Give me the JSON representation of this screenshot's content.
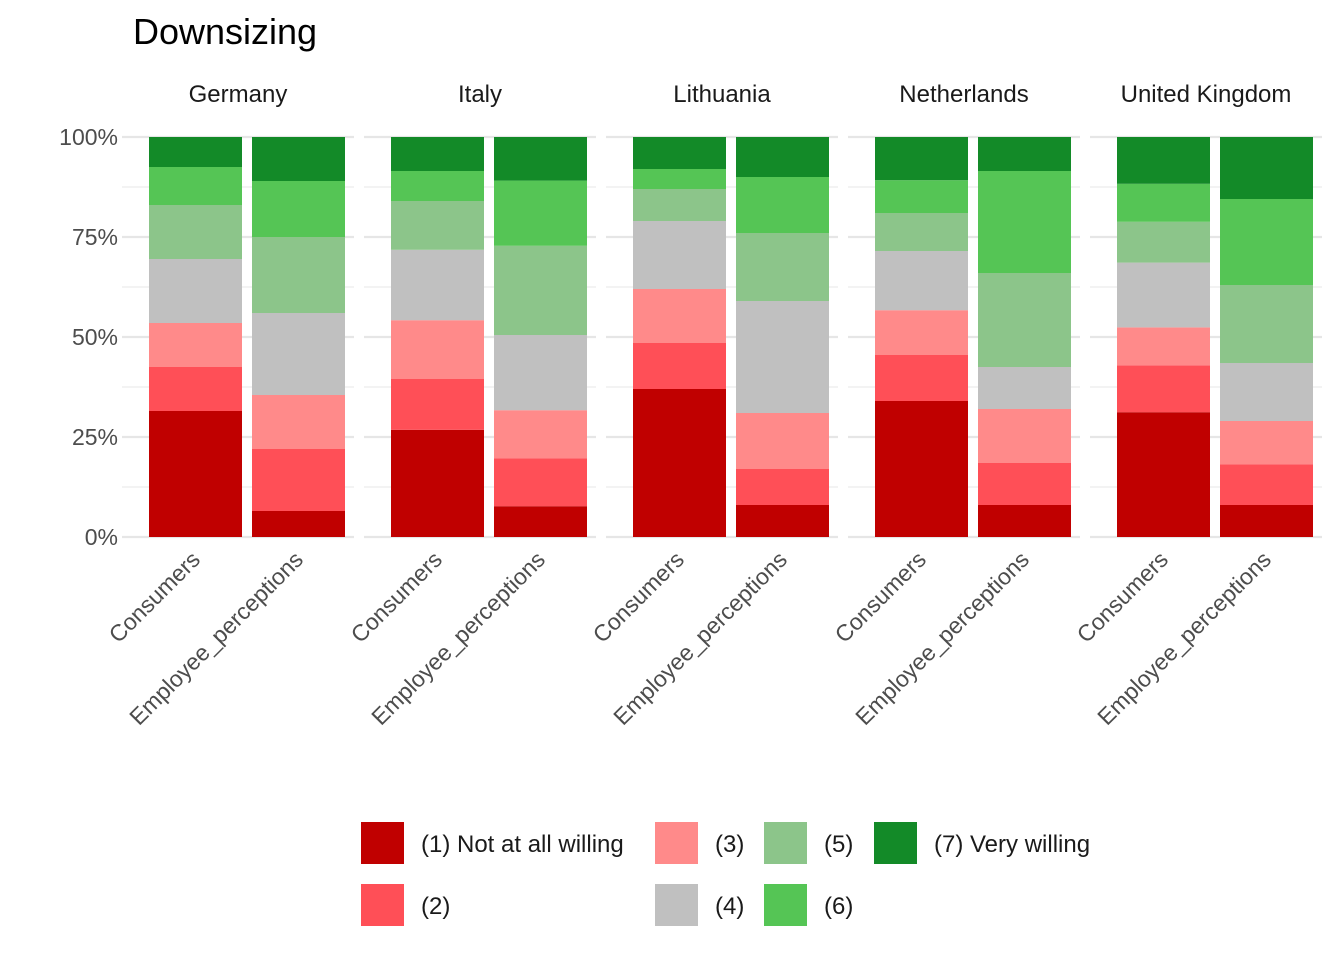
{
  "chart_data": {
    "type": "bar",
    "stacked": true,
    "normalized": true,
    "title": "Downsizing",
    "xlabel": "",
    "ylabel": "",
    "ylim": [
      0,
      1
    ],
    "y_ticks": [
      0,
      0.25,
      0.5,
      0.75,
      1.0
    ],
    "y_tick_labels": [
      "0%",
      "25%",
      "50%",
      "75%",
      "100%"
    ],
    "grid": true,
    "legend_position": "bottom",
    "categories": [
      "Consumers",
      "Employee_perceptions"
    ],
    "levels": [
      {
        "label": "(1) Not at all willing",
        "color": "#C00000"
      },
      {
        "label": "(2)",
        "color": "#FF4F57"
      },
      {
        "label": "(3)",
        "color": "#FF8A8A"
      },
      {
        "label": "(4)",
        "color": "#C0C0C0"
      },
      {
        "label": "(5)",
        "color": "#8CC58A"
      },
      {
        "label": "(6)",
        "color": "#55C555"
      },
      {
        "label": "(7) Very willing",
        "color": "#138A28"
      }
    ],
    "facets": [
      {
        "name": "Germany",
        "bars": [
          {
            "category": "Consumers",
            "values": [
              0.315,
              0.11,
              0.11,
              0.16,
              0.135,
              0.095,
              0.075
            ]
          },
          {
            "category": "Employee_perceptions",
            "values": [
              0.065,
              0.155,
              0.135,
              0.205,
              0.19,
              0.14,
              0.11
            ]
          }
        ]
      },
      {
        "name": "Italy",
        "bars": [
          {
            "category": "Consumers",
            "values": [
              0.268,
              0.127,
              0.147,
              0.176,
              0.122,
              0.075,
              0.085
            ]
          },
          {
            "category": "Employee_perceptions",
            "values": [
              0.077,
              0.12,
              0.12,
              0.188,
              0.223,
              0.163,
              0.109
            ]
          }
        ]
      },
      {
        "name": "Lithuania",
        "bars": [
          {
            "category": "Consumers",
            "values": [
              0.37,
              0.115,
              0.135,
              0.17,
              0.08,
              0.05,
              0.08
            ]
          },
          {
            "category": "Employee_perceptions",
            "values": [
              0.08,
              0.09,
              0.14,
              0.28,
              0.17,
              0.14,
              0.1
            ]
          }
        ]
      },
      {
        "name": "Netherlands",
        "bars": [
          {
            "category": "Consumers",
            "values": [
              0.34,
              0.115,
              0.112,
              0.148,
              0.095,
              0.082,
              0.108
            ]
          },
          {
            "category": "Employee_perceptions",
            "values": [
              0.08,
              0.105,
              0.135,
              0.105,
              0.235,
              0.255,
              0.085
            ]
          }
        ]
      },
      {
        "name": "United Kingdom",
        "bars": [
          {
            "category": "Consumers",
            "values": [
              0.312,
              0.117,
              0.095,
              0.162,
              0.102,
              0.095,
              0.117
            ]
          },
          {
            "category": "Employee_perceptions",
            "values": [
              0.08,
              0.102,
              0.108,
              0.145,
              0.195,
              0.215,
              0.155
            ]
          }
        ]
      }
    ]
  }
}
